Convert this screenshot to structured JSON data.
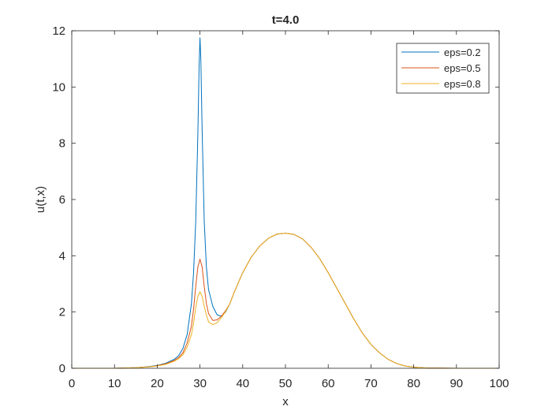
{
  "chart_data": {
    "type": "line",
    "title": "t=4.0",
    "xlabel": "x",
    "ylabel": "u(t,x)",
    "xlim": [
      0,
      100
    ],
    "ylim": [
      0,
      12
    ],
    "xticks": [
      0,
      10,
      20,
      30,
      40,
      50,
      60,
      70,
      80,
      90,
      100
    ],
    "yticks": [
      0,
      2,
      4,
      6,
      8,
      10,
      12
    ],
    "grid": false,
    "legend_position": "top-right",
    "series": [
      {
        "name": "eps=0.2",
        "color": "#0072bd",
        "points": [
          [
            0,
            0
          ],
          [
            10,
            0
          ],
          [
            15,
            0.02
          ],
          [
            18,
            0.06
          ],
          [
            20,
            0.1
          ],
          [
            22,
            0.18
          ],
          [
            24,
            0.32
          ],
          [
            25,
            0.45
          ],
          [
            26,
            0.7
          ],
          [
            27,
            1.2
          ],
          [
            28,
            2.3
          ],
          [
            28.5,
            3.4
          ],
          [
            29,
            5.2
          ],
          [
            29.5,
            8.3
          ],
          [
            29.8,
            10.8
          ],
          [
            30,
            11.75
          ],
          [
            30.2,
            11.0
          ],
          [
            30.5,
            8.5
          ],
          [
            31,
            5.2
          ],
          [
            31.5,
            3.6
          ],
          [
            32,
            2.8
          ],
          [
            33,
            2.2
          ],
          [
            34,
            1.9
          ],
          [
            35,
            1.85
          ],
          [
            36,
            2.0
          ],
          [
            37,
            2.3
          ],
          [
            38,
            2.7
          ],
          [
            39,
            3.05
          ],
          [
            40,
            3.4
          ],
          [
            42,
            3.95
          ],
          [
            44,
            4.35
          ],
          [
            46,
            4.62
          ],
          [
            48,
            4.77
          ],
          [
            50,
            4.8
          ],
          [
            52,
            4.76
          ],
          [
            54,
            4.6
          ],
          [
            56,
            4.3
          ],
          [
            58,
            3.9
          ],
          [
            60,
            3.4
          ],
          [
            62,
            2.85
          ],
          [
            64,
            2.3
          ],
          [
            66,
            1.75
          ],
          [
            68,
            1.25
          ],
          [
            70,
            0.85
          ],
          [
            72,
            0.55
          ],
          [
            74,
            0.32
          ],
          [
            76,
            0.17
          ],
          [
            78,
            0.08
          ],
          [
            80,
            0.04
          ],
          [
            83,
            0.01
          ],
          [
            90,
            0
          ],
          [
            100,
            0
          ]
        ]
      },
      {
        "name": "eps=0.5",
        "color": "#d95319",
        "points": [
          [
            0,
            0
          ],
          [
            10,
            0
          ],
          [
            15,
            0.02
          ],
          [
            18,
            0.05
          ],
          [
            20,
            0.09
          ],
          [
            22,
            0.16
          ],
          [
            24,
            0.28
          ],
          [
            25,
            0.38
          ],
          [
            26,
            0.55
          ],
          [
            27,
            0.9
          ],
          [
            28,
            1.5
          ],
          [
            28.5,
            2.1
          ],
          [
            29,
            2.9
          ],
          [
            29.5,
            3.6
          ],
          [
            30,
            3.88
          ],
          [
            30.5,
            3.6
          ],
          [
            31,
            2.9
          ],
          [
            31.5,
            2.3
          ],
          [
            32,
            1.95
          ],
          [
            33,
            1.7
          ],
          [
            34,
            1.72
          ],
          [
            35,
            1.85
          ],
          [
            36,
            2.05
          ],
          [
            37,
            2.3
          ],
          [
            38,
            2.7
          ],
          [
            39,
            3.05
          ],
          [
            40,
            3.4
          ],
          [
            42,
            3.95
          ],
          [
            44,
            4.35
          ],
          [
            46,
            4.62
          ],
          [
            48,
            4.77
          ],
          [
            50,
            4.8
          ],
          [
            52,
            4.76
          ],
          [
            54,
            4.6
          ],
          [
            56,
            4.3
          ],
          [
            58,
            3.9
          ],
          [
            60,
            3.4
          ],
          [
            62,
            2.85
          ],
          [
            64,
            2.3
          ],
          [
            66,
            1.75
          ],
          [
            68,
            1.25
          ],
          [
            70,
            0.85
          ],
          [
            72,
            0.55
          ],
          [
            74,
            0.32
          ],
          [
            76,
            0.17
          ],
          [
            78,
            0.08
          ],
          [
            80,
            0.04
          ],
          [
            83,
            0.01
          ],
          [
            90,
            0
          ],
          [
            100,
            0
          ]
        ]
      },
      {
        "name": "eps=0.8",
        "color": "#edb120",
        "points": [
          [
            0,
            0
          ],
          [
            10,
            0
          ],
          [
            15,
            0.02
          ],
          [
            18,
            0.05
          ],
          [
            20,
            0.08
          ],
          [
            22,
            0.14
          ],
          [
            24,
            0.25
          ],
          [
            25,
            0.34
          ],
          [
            26,
            0.48
          ],
          [
            27,
            0.75
          ],
          [
            28,
            1.2
          ],
          [
            28.5,
            1.6
          ],
          [
            29,
            2.15
          ],
          [
            29.5,
            2.55
          ],
          [
            30,
            2.72
          ],
          [
            30.5,
            2.55
          ],
          [
            31,
            2.2
          ],
          [
            31.5,
            1.9
          ],
          [
            32,
            1.65
          ],
          [
            33,
            1.55
          ],
          [
            34,
            1.62
          ],
          [
            35,
            1.8
          ],
          [
            36,
            2.02
          ],
          [
            37,
            2.3
          ],
          [
            38,
            2.7
          ],
          [
            39,
            3.05
          ],
          [
            40,
            3.4
          ],
          [
            42,
            3.95
          ],
          [
            44,
            4.35
          ],
          [
            46,
            4.62
          ],
          [
            48,
            4.77
          ],
          [
            50,
            4.8
          ],
          [
            52,
            4.76
          ],
          [
            54,
            4.6
          ],
          [
            56,
            4.3
          ],
          [
            58,
            3.9
          ],
          [
            60,
            3.4
          ],
          [
            62,
            2.85
          ],
          [
            64,
            2.3
          ],
          [
            66,
            1.75
          ],
          [
            68,
            1.25
          ],
          [
            70,
            0.85
          ],
          [
            72,
            0.55
          ],
          [
            74,
            0.32
          ],
          [
            76,
            0.17
          ],
          [
            78,
            0.08
          ],
          [
            80,
            0.04
          ],
          [
            83,
            0.01
          ],
          [
            90,
            0
          ],
          [
            100,
            0
          ]
        ]
      }
    ]
  }
}
